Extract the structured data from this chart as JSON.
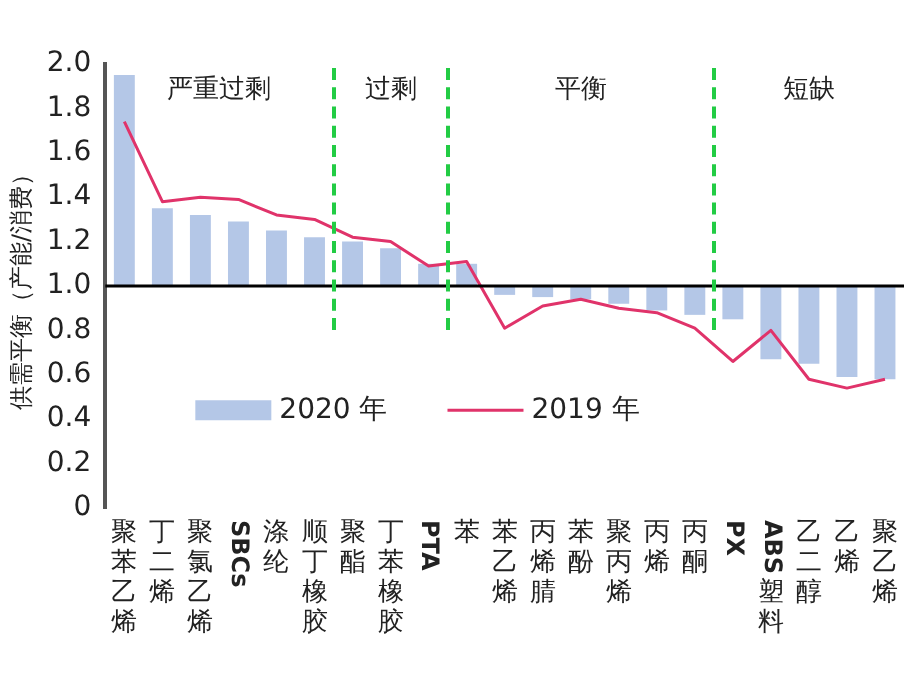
{
  "chart_data": {
    "type": "bar",
    "ylabel": "供需平衡（产能/消费）",
    "categories": [
      "聚苯乙烯",
      "丁二烯",
      "聚氯乙烯",
      "SBCs",
      "涤纶",
      "顺丁橡胶",
      "聚酯",
      "丁苯橡胶",
      "PTA",
      "苯",
      "苯乙烯",
      "丙烯腈",
      "苯酚",
      "聚丙烯",
      "丙烯",
      "丙酮",
      "PX",
      "ABS塑料",
      "乙二醇",
      "乙烯",
      "聚乙烯"
    ],
    "series": [
      {
        "name": "2020 年",
        "color": "#b4c7e7",
        "base": [
          1,
          1,
          1,
          1,
          1,
          1,
          1,
          1,
          1,
          1,
          1,
          1,
          1,
          1,
          1,
          1,
          1,
          1,
          1,
          1,
          1
        ],
        "values": [
          0.95,
          0.35,
          0.32,
          0.29,
          0.25,
          0.22,
          0.2,
          0.17,
          0.1,
          0.1,
          -0.04,
          -0.05,
          -0.06,
          -0.08,
          -0.11,
          -0.13,
          -0.15,
          -0.33,
          -0.35,
          -0.41,
          -0.42
        ]
      },
      {
        "name": "2019 年",
        "type": "line",
        "color": "#e0336a",
        "values": [
          1.74,
          1.38,
          1.4,
          1.39,
          1.32,
          1.3,
          1.22,
          1.2,
          1.09,
          1.11,
          0.81,
          0.91,
          0.94,
          0.9,
          0.88,
          0.81,
          0.66,
          0.8,
          0.58,
          0.54,
          0.58
        ]
      }
    ],
    "ylim": [
      0,
      2
    ],
    "yticks": [
      0,
      0.2,
      0.4,
      0.6,
      0.8,
      {
        "value": 1,
        "label": "1.0"
      },
      1.2,
      1.4,
      1.6,
      1.8,
      {
        "value": 2,
        "label": "2.0"
      }
    ],
    "ref_lines": [
      {
        "axis": "y",
        "value": 1,
        "color": "#000000"
      }
    ],
    "annotations": [
      "严重过剩",
      "过剩",
      "平衡",
      "短缺"
    ],
    "grid": false,
    "legend": "bottom",
    "marker": "none",
    "line_style": "solid"
  }
}
